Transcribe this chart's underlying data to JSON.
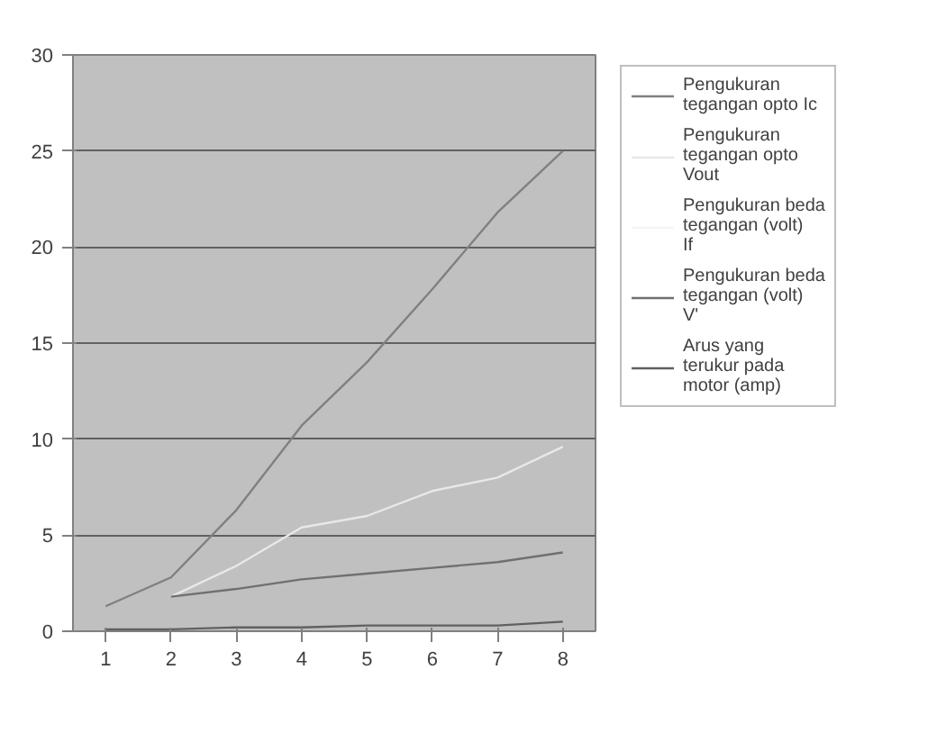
{
  "chart_data": {
    "type": "line",
    "categories": [
      "1",
      "2",
      "3",
      "4",
      "5",
      "6",
      "7",
      "8"
    ],
    "ylim": [
      0,
      30
    ],
    "yticks": [
      0,
      5,
      10,
      15,
      20,
      25,
      30
    ],
    "grid": "y",
    "legend": "right",
    "marker": "none",
    "series": [
      {
        "name": "Pengukuran tegangan opto Ic",
        "color": "#808080",
        "values": [
          1.3,
          2.8,
          6.3,
          10.7,
          14,
          17.8,
          21.8,
          25
        ]
      },
      {
        "name": "Pengukuran tegangan opto Vout",
        "color": "#e8e8e8",
        "values": [
          null,
          1.8,
          3.4,
          5.4,
          6.0,
          7.3,
          8.0,
          9.6
        ]
      },
      {
        "name": "Pengukuran beda tegangan (volt) If",
        "color": "#f4f4f4",
        "values": [
          null,
          null,
          null,
          null,
          null,
          null,
          null,
          null
        ]
      },
      {
        "name": "Pengukuran beda tegangan (volt) V'",
        "color": "#707070",
        "values": [
          null,
          1.8,
          2.2,
          2.7,
          3.0,
          3.3,
          3.6,
          4.1
        ]
      },
      {
        "name": "Arus yang terukur pada motor (amp)",
        "color": "#606060",
        "values": [
          0.1,
          0.1,
          0.2,
          0.2,
          0.3,
          0.3,
          0.3,
          0.5
        ]
      }
    ]
  }
}
